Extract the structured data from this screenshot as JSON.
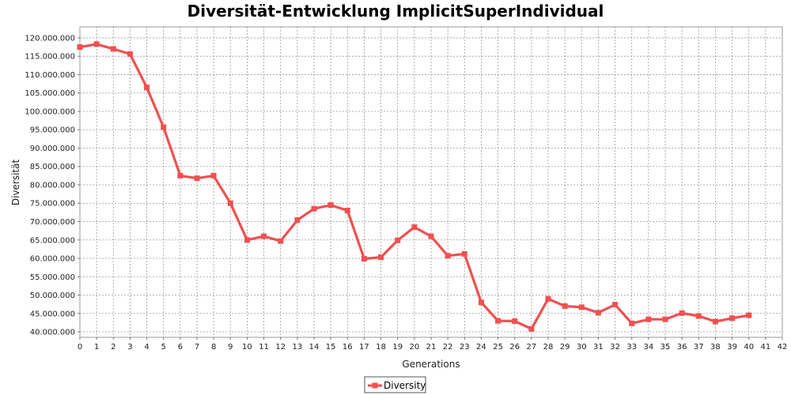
{
  "chart_data": {
    "type": "line",
    "title": "Diversität-Entwicklung ImplicitSuperIndividual",
    "xlabel": "Generations",
    "ylabel": "Diversität",
    "xlim": [
      0,
      42
    ],
    "ylim": [
      38500000,
      123000000
    ],
    "x_ticks": [
      0,
      1,
      2,
      3,
      4,
      5,
      6,
      7,
      8,
      9,
      10,
      11,
      12,
      13,
      14,
      15,
      16,
      17,
      18,
      19,
      20,
      21,
      22,
      23,
      24,
      25,
      26,
      27,
      28,
      29,
      30,
      31,
      32,
      33,
      34,
      35,
      36,
      37,
      38,
      39,
      40,
      41,
      42
    ],
    "y_ticks": [
      40000000,
      45000000,
      50000000,
      55000000,
      60000000,
      65000000,
      70000000,
      75000000,
      80000000,
      85000000,
      90000000,
      95000000,
      100000000,
      105000000,
      110000000,
      115000000,
      120000000
    ],
    "grid": true,
    "legend_position": "bottom-center",
    "series": [
      {
        "name": "Diversity",
        "color": "#f05050",
        "x": [
          0,
          1,
          2,
          3,
          4,
          5,
          6,
          7,
          8,
          9,
          10,
          11,
          12,
          13,
          14,
          15,
          16,
          17,
          18,
          19,
          20,
          21,
          22,
          23,
          24,
          25,
          26,
          27,
          28,
          29,
          30,
          31,
          32,
          33,
          34,
          35,
          36,
          37,
          38,
          39,
          40
        ],
        "values": [
          117500000,
          118300000,
          117000000,
          115600000,
          106500000,
          95700000,
          82500000,
          81800000,
          82500000,
          75000000,
          65000000,
          66000000,
          64700000,
          70400000,
          73500000,
          74500000,
          73000000,
          59900000,
          60300000,
          64900000,
          68500000,
          66000000,
          60700000,
          61200000,
          48000000,
          43000000,
          42900000,
          40800000,
          49000000,
          47000000,
          46700000,
          45200000,
          47400000,
          42300000,
          43400000,
          43400000,
          45100000,
          44300000,
          42800000,
          43700000,
          44500000
        ]
      }
    ]
  }
}
